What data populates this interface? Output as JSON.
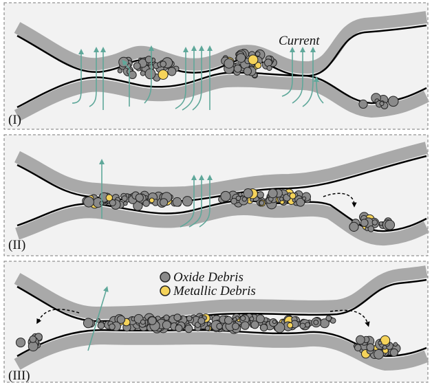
{
  "panels": [
    {
      "label": "(I)",
      "annotation": "Current"
    },
    {
      "label": "(II)"
    },
    {
      "label": "(III)"
    }
  ],
  "legend": {
    "items": [
      "Oxide Debris",
      "Metallic Debris"
    ]
  }
}
